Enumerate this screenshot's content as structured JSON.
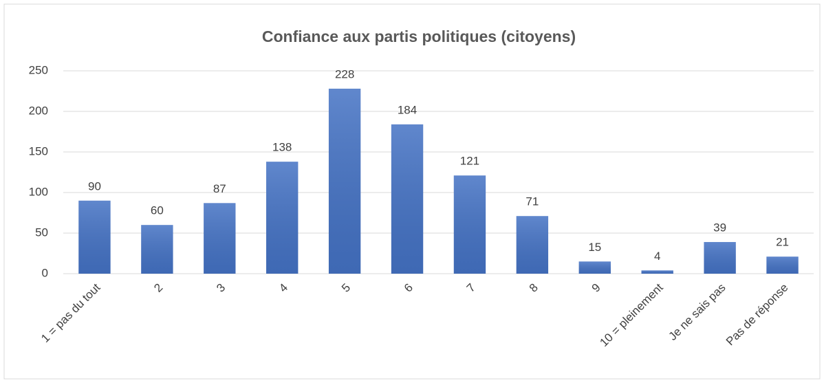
{
  "chart_data": {
    "type": "bar",
    "title": "Confiance aux partis politiques (citoyens)",
    "categories": [
      "1 = pas du tout",
      "2",
      "3",
      "4",
      "5",
      "6",
      "7",
      "8",
      "9",
      "10 = pleinement",
      "Je ne sais pas",
      "Pas de réponse"
    ],
    "values": [
      90,
      60,
      87,
      138,
      228,
      184,
      121,
      71,
      15,
      4,
      39,
      21
    ],
    "color": "#4472c4",
    "ylim": [
      0,
      250
    ],
    "yticks": [
      0,
      50,
      100,
      150,
      200,
      250
    ],
    "grid": true
  }
}
